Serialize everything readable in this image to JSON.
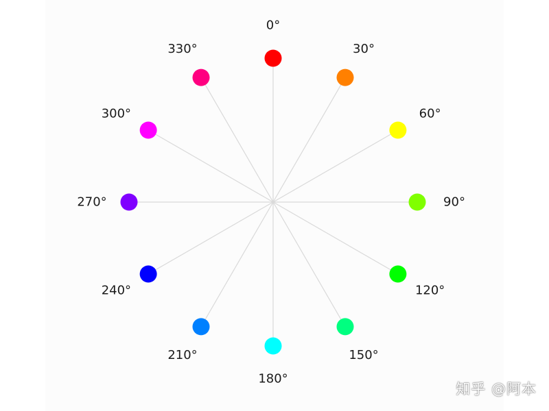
{
  "wheel": {
    "spoke_color": "#d9d9d9",
    "hues": [
      {
        "angle": 0,
        "label": "0°",
        "color": "#ff0000"
      },
      {
        "angle": 30,
        "label": "30°",
        "color": "#ff8000"
      },
      {
        "angle": 60,
        "label": "60°",
        "color": "#ffff00"
      },
      {
        "angle": 90,
        "label": "90°",
        "color": "#80ff00"
      },
      {
        "angle": 120,
        "label": "120°",
        "color": "#00ff00"
      },
      {
        "angle": 150,
        "label": "150°",
        "color": "#00ff80"
      },
      {
        "angle": 180,
        "label": "180°",
        "color": "#00ffff"
      },
      {
        "angle": 210,
        "label": "210°",
        "color": "#0080ff"
      },
      {
        "angle": 240,
        "label": "240°",
        "color": "#0000ff"
      },
      {
        "angle": 270,
        "label": "270°",
        "color": "#8000ff"
      },
      {
        "angle": 300,
        "label": "300°",
        "color": "#ff00ff"
      },
      {
        "angle": 330,
        "label": "330°",
        "color": "#ff0080"
      }
    ]
  },
  "watermark": {
    "text": "知乎 @阿本"
  }
}
